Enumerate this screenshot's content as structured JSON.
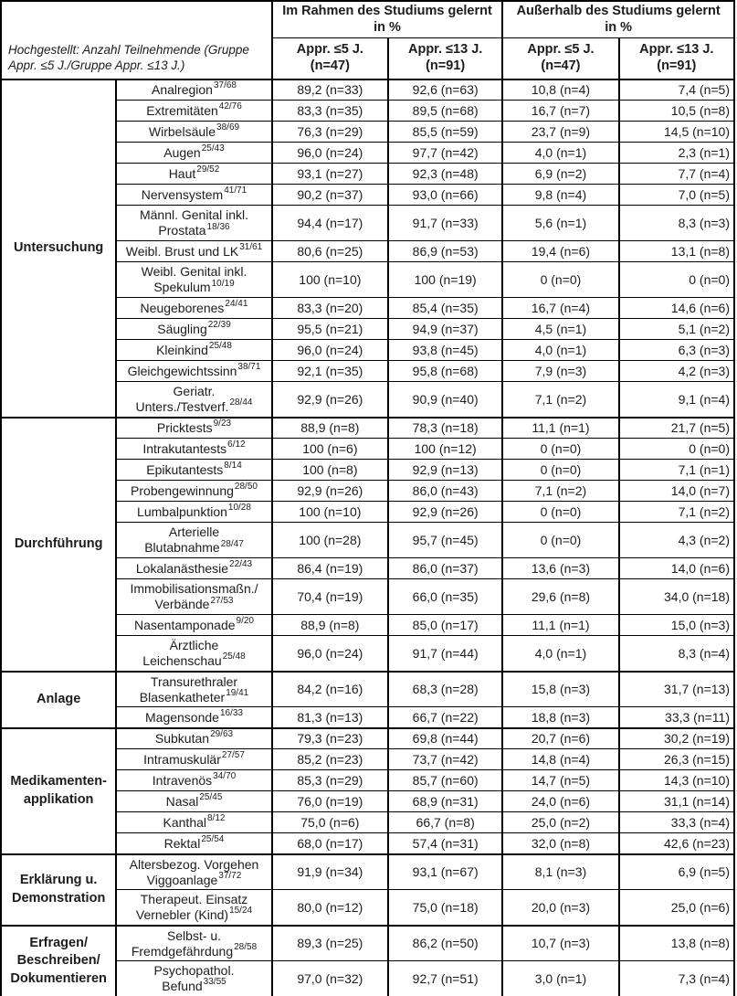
{
  "table": {
    "note": "Hochgestellt: Anzahl Teilnehmende (Gruppe Appr. ≤5 J./Gruppe Appr. ≤13 J.)",
    "header": {
      "col_groups": [
        {
          "line1": "Im Rahmen des Studiums gelernt",
          "line2": "in %"
        },
        {
          "line1": "Außerhalb des Studiums gelernt",
          "line2": "in %"
        }
      ],
      "sub_columns": [
        {
          "label": "Appr. ≤5 J.",
          "n": "(n=47)"
        },
        {
          "label": "Appr. ≤13 J.",
          "n": "(n=91)"
        },
        {
          "label": "Appr. ≤5 J.",
          "n": "(n=47)"
        },
        {
          "label": "Appr. ≤13 J.",
          "n": "(n=91)"
        }
      ]
    },
    "sections": [
      {
        "label_lines": [
          "Untersuchung"
        ],
        "rows": [
          {
            "lines": [
              "Analregion"
            ],
            "sup": "37/68",
            "values": [
              "89,2 (n=33)",
              "92,6 (n=63)",
              "10,8 (n=4)",
              "7,4 (n=5)"
            ]
          },
          {
            "lines": [
              "Extremitäten"
            ],
            "sup": "42/76",
            "values": [
              "83,3 (n=35)",
              "89,5 (n=68)",
              "16,7 (n=7)",
              "10,5 (n=8)"
            ]
          },
          {
            "lines": [
              "Wirbelsäule"
            ],
            "sup": "38/69",
            "values": [
              "76,3 (n=29)",
              "85,5 (n=59)",
              "23,7 (n=9)",
              "14,5 (n=10)"
            ]
          },
          {
            "lines": [
              "Augen"
            ],
            "sup": "25/43",
            "values": [
              "96,0 (n=24)",
              "97,7 (n=42)",
              "4,0 (n=1)",
              "2,3 (n=1)"
            ]
          },
          {
            "lines": [
              "Haut"
            ],
            "sup": "29/52",
            "values": [
              "93,1 (n=27)",
              "92,3 (n=48)",
              "6,9 (n=2)",
              "7,7 (n=4)"
            ]
          },
          {
            "lines": [
              "Nervensystem"
            ],
            "sup": "41/71",
            "values": [
              "90,2 (n=37)",
              "93,0 (n=66)",
              "9,8 (n=4)",
              "7,0 (n=5)"
            ]
          },
          {
            "lines": [
              "Männl. Genital inkl.",
              "Prostata"
            ],
            "sup": "18/36",
            "values": [
              "94,4 (n=17)",
              "91,7 (n=33)",
              "5,6 (n=1)",
              "8,3 (n=3)"
            ]
          },
          {
            "lines": [
              "Weibl. Brust und LK"
            ],
            "sup": "31/61",
            "values": [
              "80,6 (n=25)",
              "86,9 (n=53)",
              "19,4 (n=6)",
              "13,1 (n=8)"
            ]
          },
          {
            "lines": [
              "Weibl. Genital inkl.",
              "Spekulum"
            ],
            "sup": "10/19",
            "values": [
              "100 (n=10)",
              "100 (n=19)",
              "0 (n=0)",
              "0 (n=0)"
            ]
          },
          {
            "lines": [
              "Neugeborenes"
            ],
            "sup": "24/41",
            "values": [
              "83,3 (n=20)",
              "85,4 (n=35)",
              "16,7 (n=4)",
              "14,6 (n=6)"
            ]
          },
          {
            "lines": [
              "Säugling"
            ],
            "sup": "22/39",
            "values": [
              "95,5 (n=21)",
              "94,9 (n=37)",
              "4,5 (n=1)",
              "5,1 (n=2)"
            ]
          },
          {
            "lines": [
              "Kleinkind"
            ],
            "sup": "25/48",
            "values": [
              "96,0 (n=24)",
              "93,8 (n=45)",
              "4,0 (n=1)",
              "6,3 (n=3)"
            ]
          },
          {
            "lines": [
              "Gleichgewichtssinn"
            ],
            "sup": "38/71",
            "values": [
              "92,1 (n=35)",
              "95,8 (n=68)",
              "7,9 (n=3)",
              "4,2 (n=3)"
            ]
          },
          {
            "lines": [
              "Geriatr.",
              "Unters./Testverf."
            ],
            "sup": "28/44",
            "values": [
              "92,9 (n=26)",
              "90,9 (n=40)",
              "7,1 (n=2)",
              "9,1 (n=4)"
            ]
          }
        ]
      },
      {
        "label_lines": [
          "Durchführung"
        ],
        "rows": [
          {
            "lines": [
              "Pricktests"
            ],
            "sup": "9/23",
            "values": [
              "88,9 (n=8)",
              "78,3 (n=18)",
              "11,1 (n=1)",
              "21,7 (n=5)"
            ]
          },
          {
            "lines": [
              "Intrakutantests"
            ],
            "sup": "6/12",
            "values": [
              "100 (n=6)",
              "100 (n=12)",
              "0 (n=0)",
              "0 (n=0)"
            ]
          },
          {
            "lines": [
              "Epikutantests"
            ],
            "sup": "8/14",
            "values": [
              "100 (n=8)",
              "92,9 (n=13)",
              "0 (n=0)",
              "7,1 (n=1)"
            ]
          },
          {
            "lines": [
              "Probengewinnung"
            ],
            "sup": "28/50",
            "values": [
              "92,9 (n=26)",
              "86,0 (n=43)",
              "7,1 (n=2)",
              "14,0 (n=7)"
            ]
          },
          {
            "lines": [
              "Lumbalpunktion"
            ],
            "sup": "10/28",
            "values": [
              "100 (n=10)",
              "92,9 (n=26)",
              "0 (n=0)",
              "7,1 (n=2)"
            ]
          },
          {
            "lines": [
              "Arterielle",
              "Blutabnahme"
            ],
            "sup": "28/47",
            "values": [
              "100 (n=28)",
              "95,7 (n=45)",
              "0 (n=0)",
              "4,3 (n=2)"
            ]
          },
          {
            "lines": [
              "Lokalanästhesie"
            ],
            "sup": "22/43",
            "values": [
              "86,4 (n=19)",
              "86,0 (n=37)",
              "13,6 (n=3)",
              "14,0 (n=6)"
            ]
          },
          {
            "lines": [
              "Immobilisationsmaßn./",
              "Verbände"
            ],
            "sup": "27/53",
            "values": [
              "70,4 (n=19)",
              "66,0 (n=35)",
              "29,6 (n=8)",
              "34,0 (n=18)"
            ]
          },
          {
            "lines": [
              "Nasentamponade"
            ],
            "sup": "9/20",
            "values": [
              "88,9 (n=8)",
              "85,0 (n=17)",
              "11,1 (n=1)",
              "15,0 (n=3)"
            ]
          },
          {
            "lines": [
              "Ärztliche",
              "Leichenschau"
            ],
            "sup": "25/48",
            "values": [
              "96,0 (n=24)",
              "91,7 (n=44)",
              "4,0 (n=1)",
              "8,3 (n=4)"
            ]
          }
        ]
      },
      {
        "label_lines": [
          "Anlage"
        ],
        "rows": [
          {
            "lines": [
              "Transurethraler",
              "Blasenkatheter"
            ],
            "sup": "19/41",
            "values": [
              "84,2 (n=16)",
              "68,3 (n=28)",
              "15,8 (n=3)",
              "31,7 (n=13)"
            ]
          },
          {
            "lines": [
              "Magensonde"
            ],
            "sup": "16/33",
            "values": [
              "81,3 (n=13)",
              "66,7 (n=22)",
              "18,8 (n=3)",
              "33,3 (n=11)"
            ]
          }
        ]
      },
      {
        "label_lines": [
          "Medikamenten-",
          "applikation"
        ],
        "rows": [
          {
            "lines": [
              "Subkutan"
            ],
            "sup": "29/63",
            "values": [
              "79,3 (n=23)",
              "69,8 (n=44)",
              "20,7 (n=6)",
              "30,2 (n=19)"
            ]
          },
          {
            "lines": [
              "Intramuskulär"
            ],
            "sup": "27/57",
            "values": [
              "85,2 (n=23)",
              "73,7 (n=42)",
              "14,8 (n=4)",
              "26,3 (n=15)"
            ]
          },
          {
            "lines": [
              "Intravenös"
            ],
            "sup": "34/70",
            "values": [
              "85,3 (n=29)",
              "85,7 (n=60)",
              "14,7 (n=5)",
              "14,3 (n=10)"
            ]
          },
          {
            "lines": [
              "Nasal"
            ],
            "sup": "25/45",
            "values": [
              "76,0 (n=19)",
              "68,9 (n=31)",
              "24,0 (n=6)",
              "31,1 (n=14)"
            ]
          },
          {
            "lines": [
              "Kanthal"
            ],
            "sup": "8/12",
            "values": [
              "75,0 (n=6)",
              "66,7 (n=8)",
              "25,0 (n=2)",
              "33,3 (n=4)"
            ]
          },
          {
            "lines": [
              "Rektal"
            ],
            "sup": "25/54",
            "values": [
              "68,0 (n=17)",
              "57,4 (n=31)",
              "32,0 (n=8)",
              "42,6 (n=23)"
            ]
          }
        ]
      },
      {
        "label_lines": [
          "Erklärung u.",
          "Demonstration"
        ],
        "rows": [
          {
            "lines": [
              "Altersbezog. Vorgehen",
              "Viggoanlage"
            ],
            "sup": "37/72",
            "values": [
              "91,9 (n=34)",
              "93,1 (n=67)",
              "8,1 (n=3)",
              "6,9 (n=5)"
            ]
          },
          {
            "lines": [
              "Therapeut. Einsatz",
              "Vernebler (Kind)"
            ],
            "sup": "15/24",
            "values": [
              "80,0 (n=12)",
              "75,0 (n=18)",
              "20,0 (n=3)",
              "25,0 (n=6)"
            ]
          }
        ]
      },
      {
        "label_lines": [
          "Erfragen/",
          "Beschreiben/",
          "Dokumentieren"
        ],
        "rows": [
          {
            "lines": [
              "Selbst- u.",
              "Fremdgefährdung"
            ],
            "sup": "28/58",
            "values": [
              "89,3 (n=25)",
              "86,2 (n=50)",
              "10,7 (n=3)",
              "13,8 (n=8)"
            ]
          },
          {
            "lines": [
              "Psychopathol.",
              "Befund"
            ],
            "sup": "33/55",
            "values": [
              "97,0 (n=32)",
              "92,7 (n=51)",
              "3,0 (n=1)",
              "7,3 (n=4)"
            ]
          }
        ]
      }
    ]
  }
}
